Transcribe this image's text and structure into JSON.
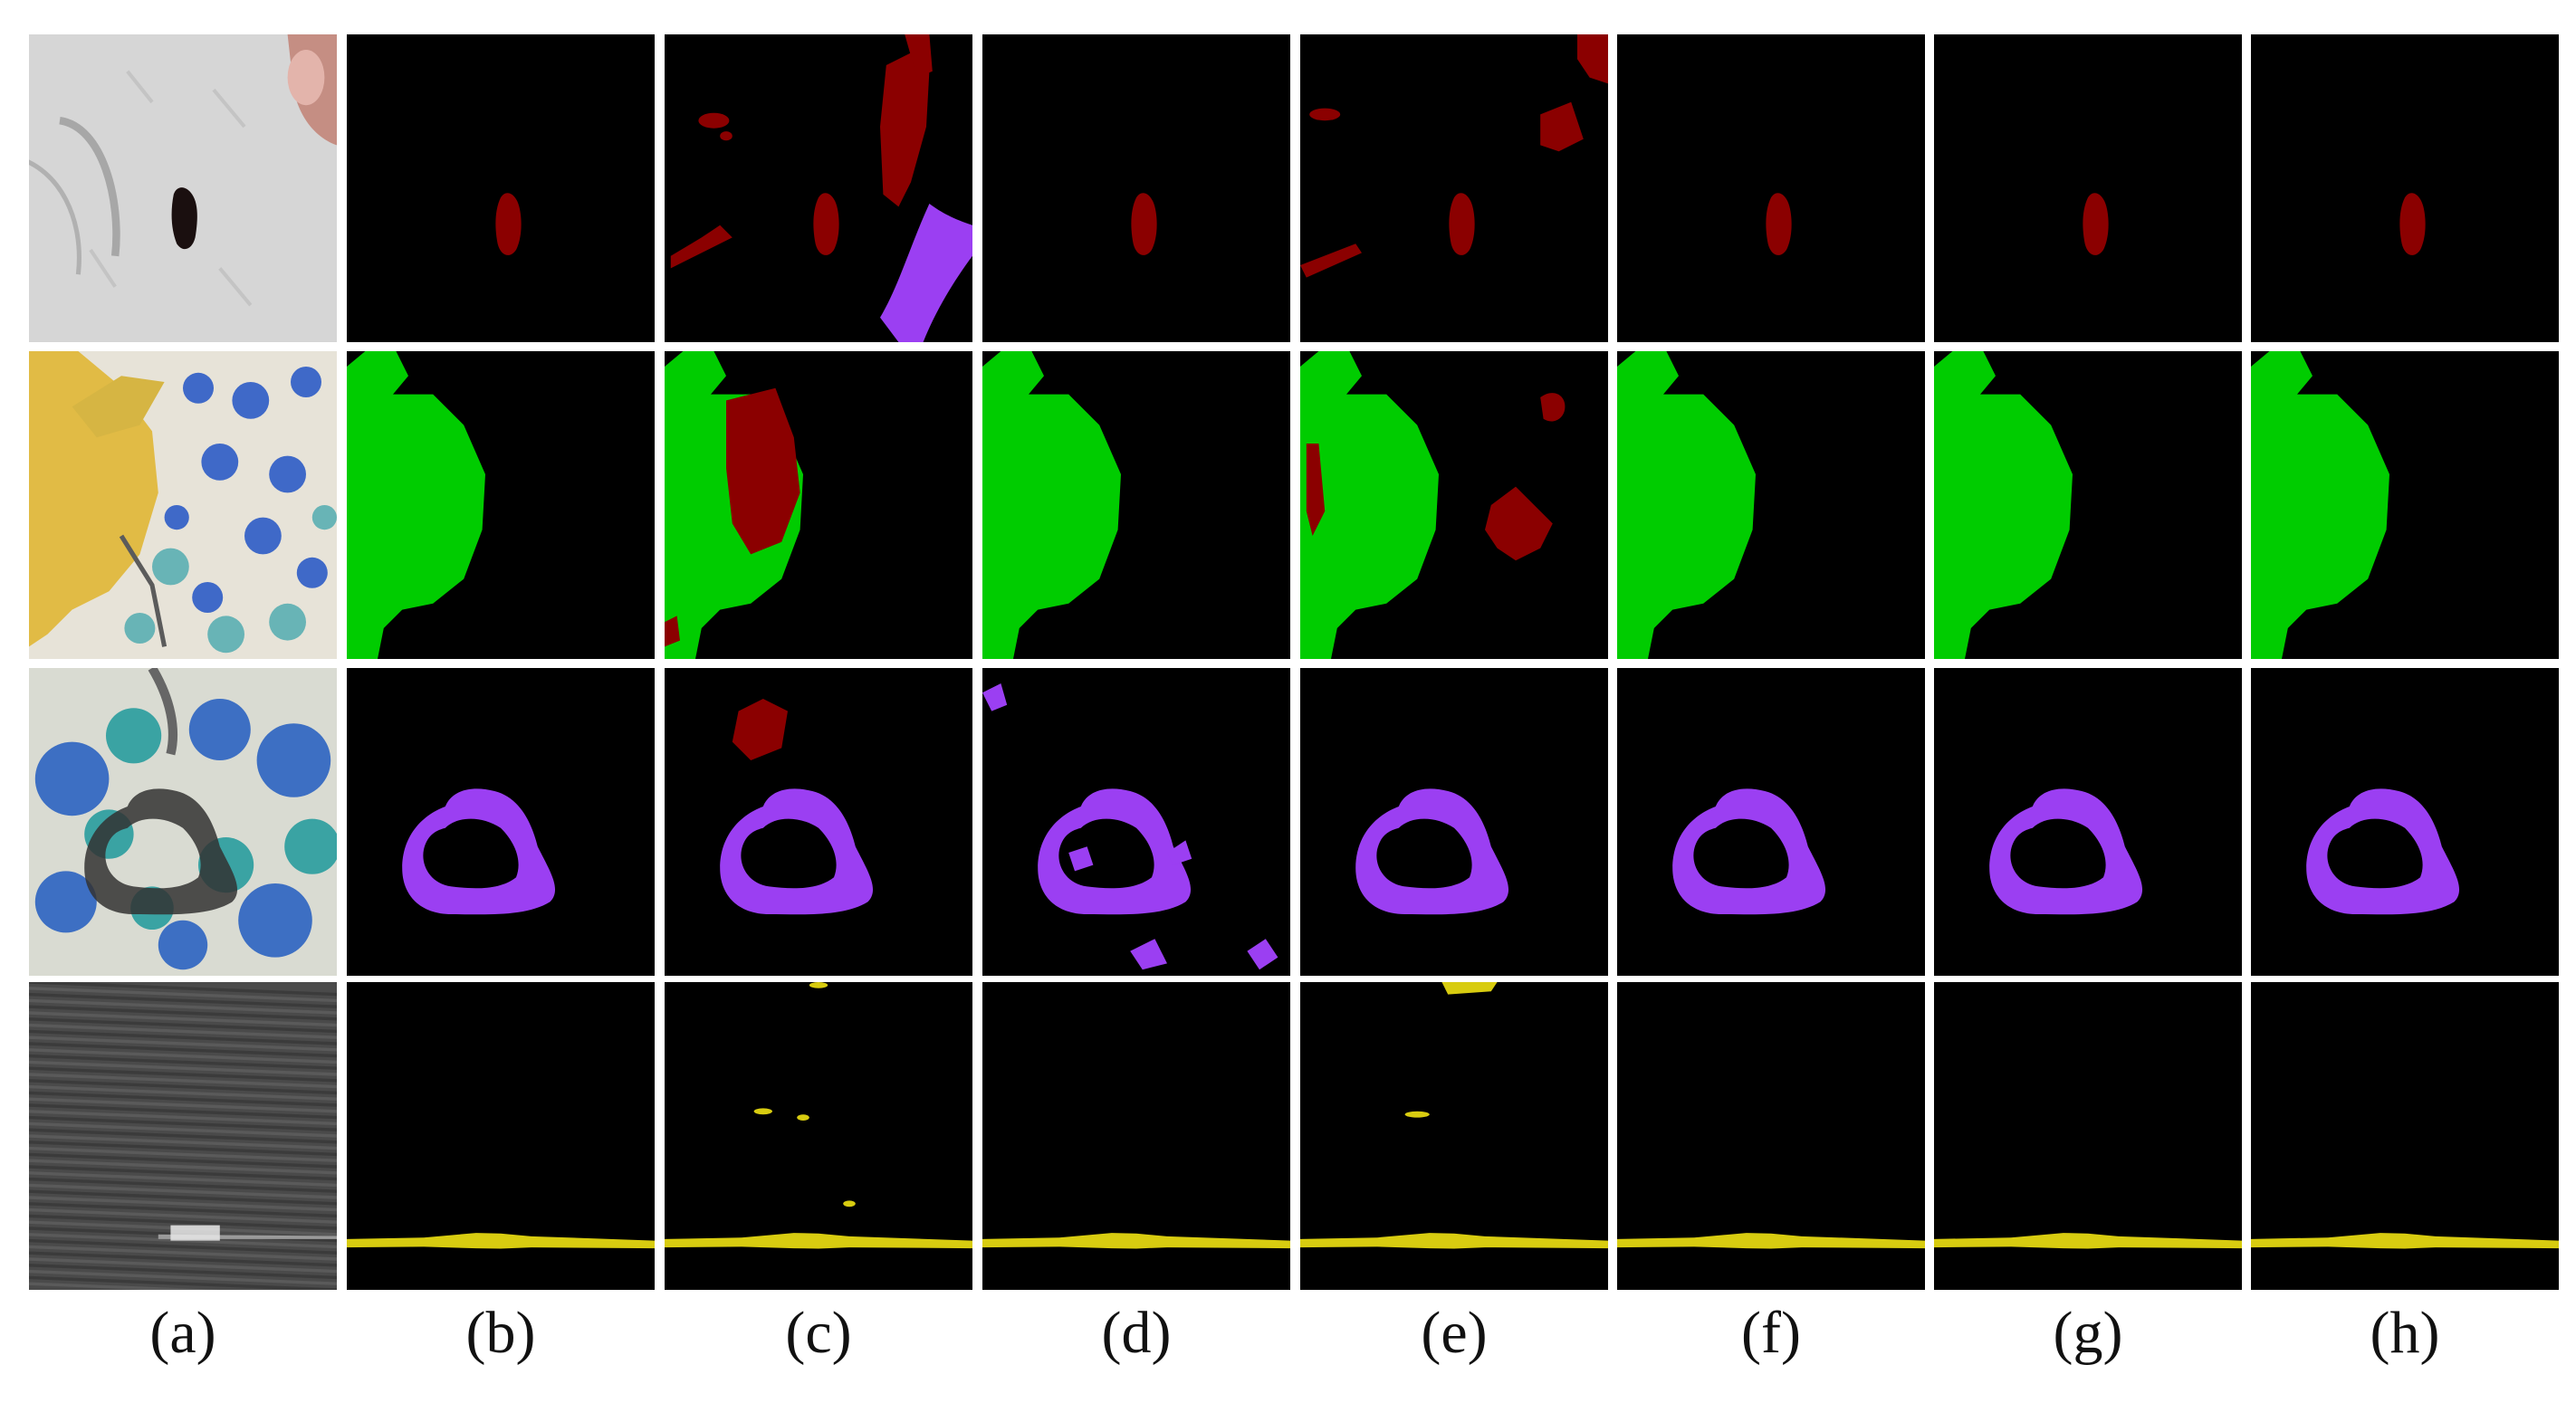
{
  "figure": {
    "column_labels": [
      "(a)",
      "(b)",
      "(c)",
      "(d)",
      "(e)",
      "(f)",
      "(g)",
      "(h)"
    ],
    "colors": {
      "hole_red": "#8b0000",
      "stain_green": "#00cc00",
      "stain_purple": "#9b3ff2",
      "line_yellow": "#d8cc10",
      "background": "#000000"
    },
    "rows": [
      {
        "row": 1,
        "input_content": "gray-knit-fabric-with-hole"
      },
      {
        "row": 2,
        "input_content": "floral-fabric-with-yellow-stain"
      },
      {
        "row": 3,
        "input_content": "floral-fabric-with-dark-loop-stain"
      },
      {
        "row": 4,
        "input_content": "dark-denim-with-broken-thread"
      }
    ]
  }
}
